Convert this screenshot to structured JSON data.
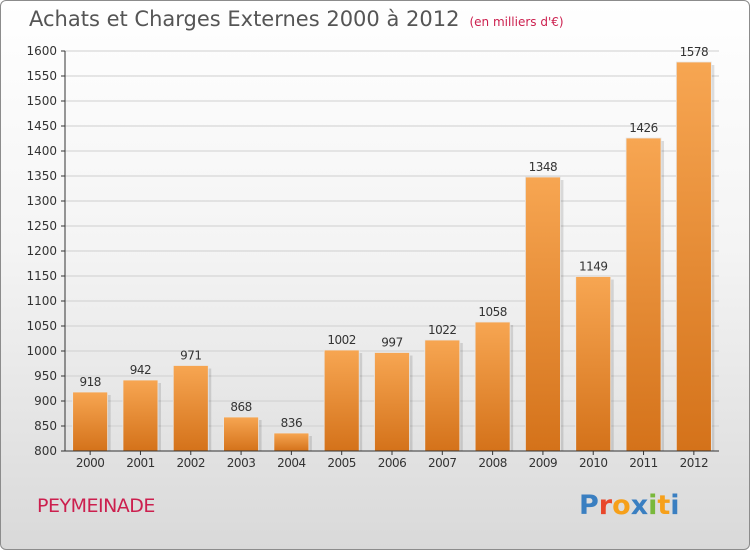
{
  "header": {
    "title": "Achats et Charges Externes 2000 à 2012",
    "subtitle": "(en milliers d'€)"
  },
  "footer": {
    "city": "PEYMEINADE",
    "logo_letters": [
      {
        "ch": "P",
        "color": "#3a7fc1"
      },
      {
        "ch": "r",
        "color": "#e8472b"
      },
      {
        "ch": "o",
        "color": "#f6a01a"
      },
      {
        "ch": "x",
        "color": "#3a7fc1"
      },
      {
        "ch": "i",
        "color": "#79b83b"
      },
      {
        "ch": "t",
        "color": "#f6a01a"
      },
      {
        "ch": "i",
        "color": "#3a7fc1"
      }
    ]
  },
  "colors": {
    "bar_top": "#f7a652",
    "bar_bottom": "#d4721a",
    "axis": "#333333",
    "grid": "#cfcfcf"
  },
  "chart_data": {
    "type": "bar",
    "title": "Achats et Charges Externes 2000 à 2012",
    "subtitle": "(en milliers d'€)",
    "categories": [
      "2000",
      "2001",
      "2002",
      "2003",
      "2004",
      "2005",
      "2006",
      "2007",
      "2008",
      "2009",
      "2010",
      "2011",
      "2012"
    ],
    "values": [
      918,
      942,
      971,
      868,
      836,
      1002,
      997,
      1022,
      1058,
      1348,
      1149,
      1426,
      1578
    ],
    "ylim": [
      800,
      1600
    ],
    "yticks": [
      800,
      850,
      900,
      950,
      1000,
      1050,
      1100,
      1150,
      1200,
      1250,
      1300,
      1350,
      1400,
      1450,
      1500,
      1550,
      1600
    ],
    "xlabel": "",
    "ylabel": "",
    "grid": true,
    "legend": "none"
  }
}
